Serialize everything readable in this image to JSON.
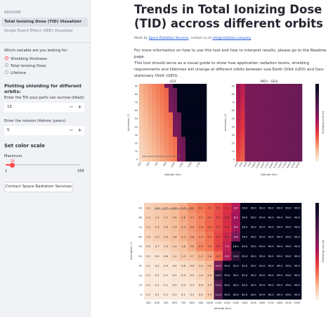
{
  "sidebar": {
    "nav": {
      "readme": "README",
      "tid": "Total Ionizing Dose (TID) Visualizer",
      "see": "Single Event Effect (SEE) Visualizer"
    },
    "variable_question": "Which variable are you looking for:",
    "radio_options": [
      {
        "label": "Shielding thickness",
        "selected": true
      },
      {
        "label": "Total Ionizing Dose",
        "selected": false
      },
      {
        "label": "Lifetime",
        "selected": false
      }
    ],
    "plotting_heading": "Plotting shielding for different orbits:",
    "tid_label": "Enter the TID your parts can survive (kRad):",
    "tid_value": "15",
    "lifetime_label": "Enter the mission lifetime (years):",
    "lifetime_value": "5",
    "minus": "−",
    "plus": "+",
    "color_scale_heading": "Set color scale",
    "maximum_label": "Maximum",
    "slider": {
      "value": "16",
      "min": "1",
      "max": "169",
      "fraction": 0.09
    },
    "contact_button": "Contact Space Radiation Services"
  },
  "main": {
    "title": "Trends in Total Ionizing Dose (TID) accross different orbits",
    "madeby_prefix": "Made by",
    "madeby_link": "Space Radiation Services",
    "madeby_mid": ", contact us at",
    "madeby_email": "info@radiation.company",
    "paragraph_1": "For more information on how to use this tool and how to interpret results, please go to the Readme page.",
    "paragraph_2": "This tool should serve as a visual guide to show how application radiation levels, shielding requirements and lifetimes will change at different orbits between Low Earth Orbit (LEO) and Geo-stationary Orbit (GEO)."
  },
  "accent_color": "#ff4b4b",
  "chart_data": [
    {
      "type": "heatmap",
      "title": "LEO",
      "xlabel": "Altitude (km)",
      "ylabel": "Inclination (°)",
      "x": [
        "300",
        "400",
        "500",
        "600",
        "700",
        "800",
        "900",
        "1000",
        "1100",
        "1200",
        "1300",
        "1400",
        "1500",
        "1600",
        "1700",
        "1800"
      ],
      "x_ticks_shown": [
        "300",
        "500",
        "700",
        "900",
        "1100",
        "1300",
        "1500",
        "1700"
      ],
      "y": [
        "90",
        "85",
        "80",
        "75",
        "70",
        "65",
        "60",
        "55",
        "50",
        "45",
        "40",
        "35",
        "30",
        "25",
        "20",
        "15",
        "10",
        "5",
        "0"
      ],
      "y_ticks_shown": [
        "90",
        "80",
        "70",
        "60",
        "50",
        "40",
        "30",
        "20",
        "10",
        "0"
      ],
      "watermark": "www.spaceradiationservices.com",
      "colorbar_label": "Shielding (mm Al)"
    },
    {
      "type": "heatmap",
      "title": "MEO - GEO",
      "xlabel": "Altitude (km)",
      "ylabel": "Inclination (°)",
      "x": [
        "2000",
        "2500",
        "5000",
        "7500",
        "10000",
        "12500",
        "15000",
        "17500",
        "20000",
        "22500",
        "25000",
        "27500",
        "30000",
        "32500",
        "35000"
      ],
      "y_ticks_shown": [
        "90",
        "80",
        "70",
        "60",
        "50",
        "40",
        "30",
        "20",
        "10",
        "0"
      ],
      "colorbar_label": "Shielding (mm Al)"
    },
    {
      "type": "heatmap",
      "xlabel": "Altitude (km)",
      "ylabel": "Inclination (°)",
      "watermark": "www.spaceradiationservices.com",
      "colorbar_label": "Shielding (mm Al)",
      "x": [
        "300",
        "400",
        "500",
        "600",
        "700",
        "800",
        "900",
        "1000",
        "1100",
        "1200",
        "1300",
        "1400",
        "1500",
        "1600",
        "1700",
        "1800",
        "1900",
        "2000"
      ],
      "y": [
        "90",
        "80",
        "70",
        "60",
        "50",
        "40",
        "30",
        "20",
        "10",
        "0"
      ],
      "values": [
        [
          1.2,
          1.4,
          1.7,
          2.0,
          2.5,
          3.4,
          4.0,
          4.5,
          5.2,
          6.2,
          8.0,
          16.0,
          30.0,
          99.0,
          99.0,
          99.0,
          99.0,
          99.0
        ],
        [
          1.2,
          1.4,
          1.7,
          2.0,
          2.6,
          3.1,
          3.7,
          4.5,
          5.3,
          6.5,
          8.5,
          16.0,
          30.0,
          99.0,
          99.0,
          99.0,
          99.0,
          99.0
        ],
        [
          1.2,
          1.4,
          1.6,
          1.9,
          2.4,
          3.0,
          3.6,
          4.5,
          5.2,
          6.4,
          8.6,
          16.0,
          30.0,
          99.0,
          99.0,
          99.0,
          99.0,
          99.0
        ],
        [
          1.0,
          1.3,
          1.5,
          1.8,
          2.3,
          2.8,
          3.3,
          4.1,
          5.5,
          6.9,
          9.8,
          16.0,
          30.0,
          99.0,
          99.0,
          99.0,
          99.0,
          99.0
        ],
        [
          0.5,
          0.7,
          1.0,
          1.4,
          1.8,
          2.5,
          3.5,
          3.9,
          5.5,
          7.5,
          16.0,
          30.0,
          30.0,
          99.0,
          99.0,
          99.0,
          99.0,
          99.0
        ],
        [
          0.2,
          0.4,
          0.6,
          1.0,
          1.5,
          1.7,
          2.3,
          2.8,
          4.3,
          8.0,
          14.0,
          30.0,
          30.0,
          99.0,
          99.0,
          99.0,
          99.0,
          99.0
        ],
        [
          0.1,
          0.2,
          0.4,
          0.4,
          0.6,
          0.9,
          1.3,
          2.0,
          10.0,
          30.0,
          30.0,
          30.0,
          30.0,
          99.0,
          99.0,
          99.0,
          99.0,
          99.0
        ],
        [
          0.1,
          0.1,
          0.1,
          0.2,
          0.4,
          0.5,
          1.0,
          1.6,
          14.0,
          30.0,
          30.0,
          30.0,
          30.0,
          99.0,
          99.0,
          99.0,
          99.0,
          99.0
        ],
        [
          0.1,
          0.1,
          0.1,
          0.2,
          0.2,
          0.3,
          0.6,
          1.3,
          12.0,
          30.0,
          30.0,
          30.0,
          30.0,
          99.0,
          99.0,
          99.0,
          99.0,
          99.0
        ],
        [
          0.1,
          0.1,
          0.1,
          0.1,
          0.1,
          0.2,
          0.5,
          1.4,
          12.0,
          30.0,
          30.0,
          30.0,
          30.0,
          99.0,
          99.0,
          99.0,
          99.0,
          99.0
        ]
      ]
    }
  ]
}
